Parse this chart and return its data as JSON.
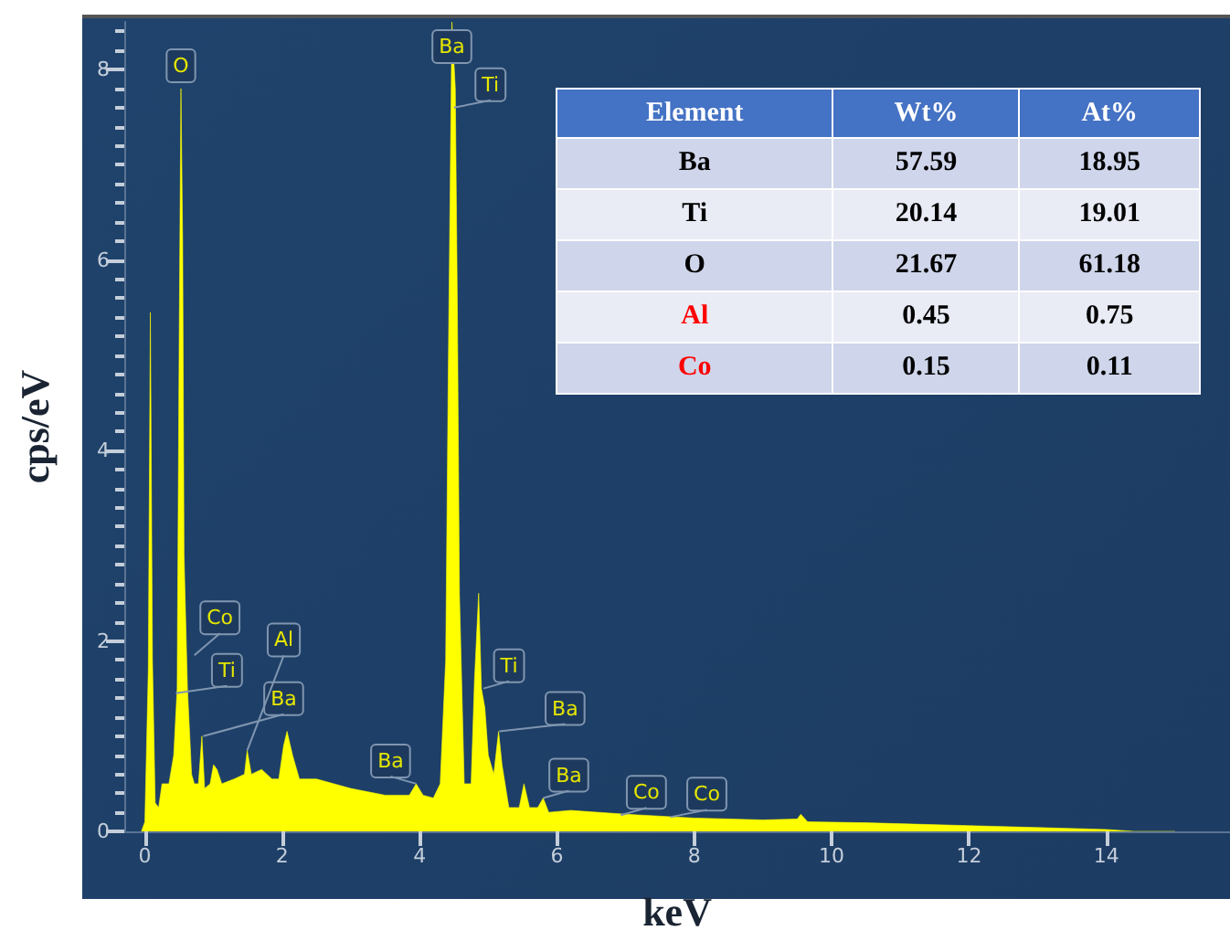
{
  "chart_data": {
    "type": "area",
    "xlabel": "keV",
    "ylabel": "cps/eV",
    "xlim": [
      -0.3,
      15.8
    ],
    "xticks": [
      0,
      2,
      4,
      6,
      8,
      10,
      12,
      14
    ],
    "ylim": [
      0,
      8.5
    ],
    "yticks": [
      0,
      2,
      4,
      6,
      8
    ],
    "grid": false,
    "series": [
      {
        "color": "#ffff00",
        "x": [
          -0.05,
          0.0,
          0.05,
          0.08,
          0.11,
          0.15,
          0.2,
          0.25,
          0.35,
          0.42,
          0.47,
          0.5,
          0.525,
          0.55,
          0.57,
          0.62,
          0.68,
          0.72,
          0.78,
          0.83,
          0.87,
          0.95,
          1.0,
          1.05,
          1.12,
          1.3,
          1.45,
          1.49,
          1.55,
          1.7,
          1.85,
          1.95,
          2.02,
          2.07,
          2.15,
          2.25,
          2.5,
          3.0,
          3.5,
          3.85,
          3.95,
          4.05,
          4.2,
          4.3,
          4.38,
          4.42,
          4.46,
          4.47,
          4.52,
          4.55,
          4.58,
          4.65,
          4.75,
          4.8,
          4.86,
          4.9,
          4.95,
          5.0,
          5.08,
          5.15,
          5.2,
          5.3,
          5.45,
          5.52,
          5.6,
          5.72,
          5.8,
          5.88,
          6.2,
          7.0,
          8.0,
          9.0,
          9.5,
          9.55,
          9.65,
          10.5,
          12.0,
          13.0,
          14.0,
          14.4,
          15.0
        ],
        "values": [
          0,
          0.1,
          1.7,
          5.45,
          1.8,
          0.3,
          0.25,
          0.5,
          0.5,
          0.8,
          1.5,
          5.2,
          7.8,
          6.2,
          2.9,
          1.5,
          0.6,
          0.5,
          0.5,
          1.0,
          0.45,
          0.5,
          0.7,
          0.65,
          0.5,
          0.55,
          0.6,
          0.85,
          0.6,
          0.65,
          0.55,
          0.55,
          0.9,
          1.05,
          0.8,
          0.55,
          0.55,
          0.45,
          0.38,
          0.38,
          0.5,
          0.38,
          0.35,
          0.5,
          1.8,
          5.0,
          7.8,
          8.5,
          7.8,
          5.5,
          2.5,
          0.5,
          0.5,
          1.6,
          2.5,
          1.5,
          1.3,
          0.8,
          0.6,
          1.05,
          0.7,
          0.25,
          0.25,
          0.5,
          0.25,
          0.25,
          0.35,
          0.2,
          0.22,
          0.18,
          0.14,
          0.12,
          0.13,
          0.18,
          0.1,
          0.09,
          0.06,
          0.04,
          0.02,
          0,
          0
        ]
      }
    ],
    "annotations": [
      {
        "text": "O",
        "x": 0.525,
        "y": 7.8
      },
      {
        "text": "Ba",
        "x": 4.47,
        "y": 8.0
      },
      {
        "text": "Ti",
        "x": 4.5,
        "y": 7.6
      },
      {
        "text": "Ti",
        "x": 0.45,
        "y": 1.45
      },
      {
        "text": "Co",
        "x": 0.72,
        "y": 1.85
      },
      {
        "text": "Ba",
        "x": 0.85,
        "y": 1.0
      },
      {
        "text": "Al",
        "x": 1.49,
        "y": 0.85
      },
      {
        "text": "Ba",
        "x": 3.95,
        "y": 0.5
      },
      {
        "text": "Ti",
        "x": 4.93,
        "y": 1.5
      },
      {
        "text": "Ba",
        "x": 5.16,
        "y": 1.05
      },
      {
        "text": "Ba",
        "x": 5.8,
        "y": 0.35
      },
      {
        "text": "Co",
        "x": 6.93,
        "y": 0.17
      },
      {
        "text": "Co",
        "x": 7.65,
        "y": 0.15
      },
      "Element",
      "Wt%",
      "At%",
      "Ba",
      "57.59",
      "18.95",
      "Ti",
      "20.14",
      "19.01",
      "O",
      "21.67",
      "61.18",
      "Al",
      "0.45",
      "0.75",
      "Co",
      "0.15",
      "0.11"
    ]
  }
}
